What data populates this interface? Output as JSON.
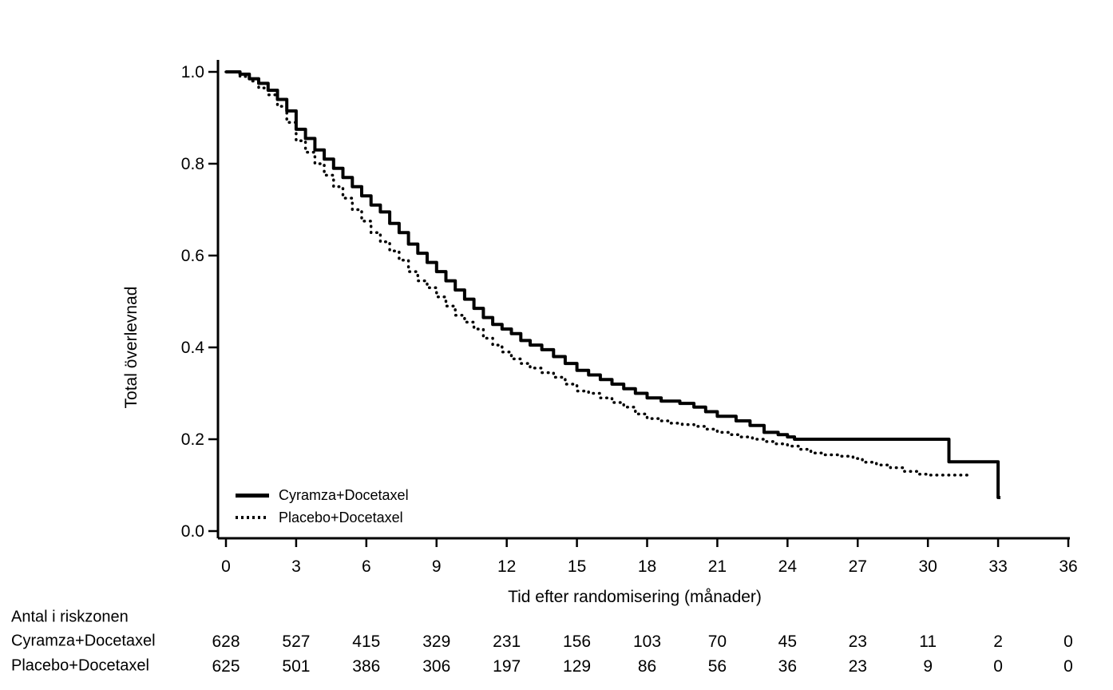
{
  "chart_data": {
    "type": "line",
    "subtype": "kaplan-meier-step",
    "title": "",
    "xlabel": "Tid efter randomisering (månader)",
    "ylabel": "Total överlevnad",
    "xlim": [
      0,
      36
    ],
    "ylim": [
      0.0,
      1.0
    ],
    "grid": false,
    "legend_position": "inside-bottom-left",
    "x_tick_values": [
      0,
      3,
      6,
      9,
      12,
      15,
      18,
      21,
      24,
      27,
      30,
      33,
      36
    ],
    "x_tick_labels": [
      "0",
      "3",
      "6",
      "9",
      "12",
      "15",
      "18",
      "21",
      "24",
      "27",
      "30",
      "33",
      "36"
    ],
    "y_tick_values": [
      0.0,
      0.2,
      0.4,
      0.6,
      0.8,
      1.0
    ],
    "y_tick_labels": [
      "0.0",
      "0.2",
      "0.4",
      "0.6",
      "0.8",
      "1.0"
    ],
    "series": [
      {
        "name": "Cyramza+Docetaxel",
        "line_style": "solid",
        "color": "#000000",
        "points": [
          [
            0,
            1.0
          ],
          [
            0.6,
            0.995
          ],
          [
            1.0,
            0.985
          ],
          [
            1.4,
            0.975
          ],
          [
            1.8,
            0.96
          ],
          [
            2.2,
            0.94
          ],
          [
            2.6,
            0.915
          ],
          [
            3.0,
            0.875
          ],
          [
            3.4,
            0.855
          ],
          [
            3.8,
            0.83
          ],
          [
            4.2,
            0.81
          ],
          [
            4.6,
            0.79
          ],
          [
            5.0,
            0.77
          ],
          [
            5.4,
            0.75
          ],
          [
            5.8,
            0.73
          ],
          [
            6.2,
            0.71
          ],
          [
            6.6,
            0.695
          ],
          [
            7.0,
            0.67
          ],
          [
            7.4,
            0.65
          ],
          [
            7.8,
            0.625
          ],
          [
            8.2,
            0.605
          ],
          [
            8.6,
            0.585
          ],
          [
            9.0,
            0.565
          ],
          [
            9.4,
            0.545
          ],
          [
            9.8,
            0.525
          ],
          [
            10.2,
            0.505
          ],
          [
            10.6,
            0.485
          ],
          [
            11.0,
            0.465
          ],
          [
            11.4,
            0.45
          ],
          [
            11.8,
            0.44
          ],
          [
            12.2,
            0.43
          ],
          [
            12.6,
            0.415
          ],
          [
            13.0,
            0.405
          ],
          [
            13.5,
            0.395
          ],
          [
            14.0,
            0.38
          ],
          [
            14.5,
            0.365
          ],
          [
            15.0,
            0.35
          ],
          [
            15.5,
            0.34
          ],
          [
            16.0,
            0.33
          ],
          [
            16.5,
            0.32
          ],
          [
            17.0,
            0.31
          ],
          [
            17.5,
            0.3
          ],
          [
            18.0,
            0.29
          ],
          [
            18.6,
            0.283
          ],
          [
            19.4,
            0.278
          ],
          [
            20.0,
            0.27
          ],
          [
            20.5,
            0.26
          ],
          [
            21.0,
            0.25
          ],
          [
            21.8,
            0.24
          ],
          [
            22.4,
            0.23
          ],
          [
            23.0,
            0.215
          ],
          [
            23.6,
            0.21
          ],
          [
            24.0,
            0.205
          ],
          [
            24.3,
            0.2
          ],
          [
            30.9,
            0.2
          ],
          [
            30.9,
            0.151
          ],
          [
            33.0,
            0.151
          ],
          [
            33.0,
            0.073
          ],
          [
            33.1,
            0.073
          ]
        ]
      },
      {
        "name": "Placebo+Docetaxel",
        "line_style": "dotted",
        "color": "#000000",
        "points": [
          [
            0,
            1.0
          ],
          [
            0.6,
            0.99
          ],
          [
            1.0,
            0.98
          ],
          [
            1.4,
            0.965
          ],
          [
            1.8,
            0.95
          ],
          [
            2.2,
            0.925
          ],
          [
            2.6,
            0.89
          ],
          [
            3.0,
            0.85
          ],
          [
            3.4,
            0.825
          ],
          [
            3.8,
            0.8
          ],
          [
            4.2,
            0.775
          ],
          [
            4.6,
            0.75
          ],
          [
            5.0,
            0.725
          ],
          [
            5.4,
            0.7
          ],
          [
            5.8,
            0.675
          ],
          [
            6.2,
            0.65
          ],
          [
            6.6,
            0.63
          ],
          [
            7.0,
            0.61
          ],
          [
            7.4,
            0.59
          ],
          [
            7.8,
            0.565
          ],
          [
            8.2,
            0.545
          ],
          [
            8.6,
            0.53
          ],
          [
            9.0,
            0.51
          ],
          [
            9.4,
            0.49
          ],
          [
            9.8,
            0.47
          ],
          [
            10.2,
            0.455
          ],
          [
            10.6,
            0.44
          ],
          [
            11.0,
            0.42
          ],
          [
            11.4,
            0.405
          ],
          [
            11.8,
            0.39
          ],
          [
            12.2,
            0.375
          ],
          [
            12.6,
            0.365
          ],
          [
            13.0,
            0.355
          ],
          [
            13.5,
            0.345
          ],
          [
            14.0,
            0.335
          ],
          [
            14.5,
            0.32
          ],
          [
            15.0,
            0.305
          ],
          [
            15.5,
            0.3
          ],
          [
            16.0,
            0.29
          ],
          [
            16.5,
            0.28
          ],
          [
            17.0,
            0.27
          ],
          [
            17.5,
            0.255
          ],
          [
            18.0,
            0.245
          ],
          [
            18.5,
            0.24
          ],
          [
            19.0,
            0.235
          ],
          [
            19.5,
            0.232
          ],
          [
            20.0,
            0.228
          ],
          [
            20.5,
            0.222
          ],
          [
            21.0,
            0.215
          ],
          [
            21.5,
            0.21
          ],
          [
            22.0,
            0.205
          ],
          [
            22.5,
            0.2
          ],
          [
            23.0,
            0.195
          ],
          [
            23.5,
            0.19
          ],
          [
            24.0,
            0.185
          ],
          [
            24.5,
            0.178
          ],
          [
            25.0,
            0.17
          ],
          [
            25.5,
            0.166
          ],
          [
            26.2,
            0.163
          ],
          [
            26.8,
            0.158
          ],
          [
            27.2,
            0.15
          ],
          [
            27.8,
            0.144
          ],
          [
            28.4,
            0.138
          ],
          [
            29.0,
            0.13
          ],
          [
            29.6,
            0.124
          ],
          [
            30.0,
            0.122
          ],
          [
            31.8,
            0.122
          ]
        ]
      }
    ],
    "risk_table": {
      "title": "Antal i riskzonen",
      "time_points": [
        0,
        3,
        6,
        9,
        12,
        15,
        18,
        21,
        24,
        27,
        30,
        33,
        36
      ],
      "rows": [
        {
          "label": "Cyramza+Docetaxel",
          "values": [
            628,
            527,
            415,
            329,
            231,
            156,
            103,
            70,
            45,
            23,
            11,
            2,
            0
          ]
        },
        {
          "label": "Placebo+Docetaxel",
          "values": [
            625,
            501,
            386,
            306,
            197,
            129,
            86,
            56,
            36,
            23,
            9,
            0,
            0
          ]
        }
      ]
    }
  },
  "colors": {
    "foreground": "#000000",
    "background": "#ffffff"
  }
}
